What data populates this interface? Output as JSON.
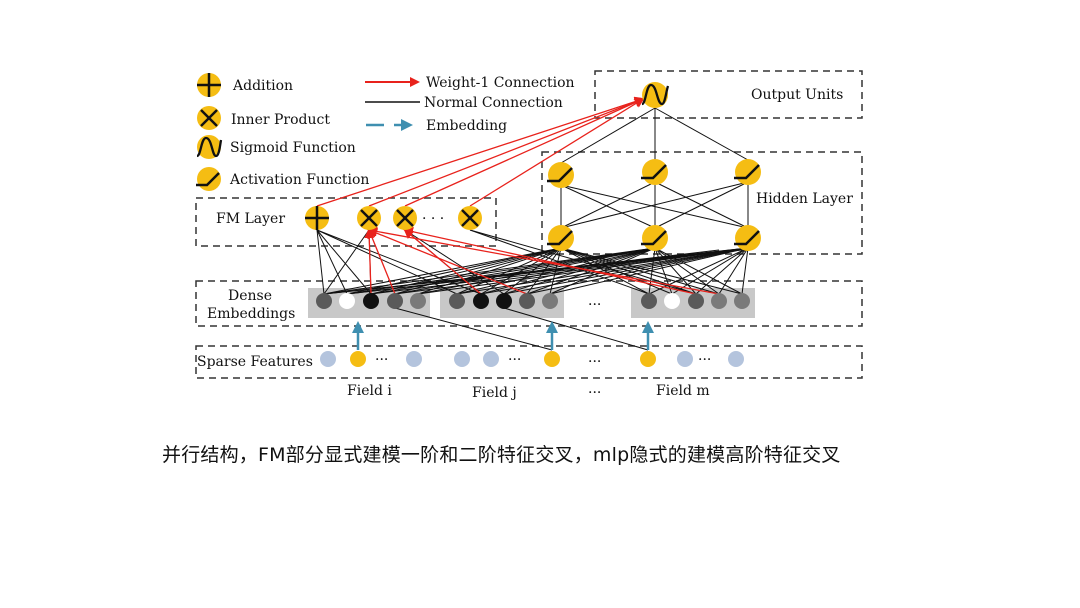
{
  "legend": {
    "addition": "Addition",
    "inner_product": "Inner Product",
    "sigmoid": "Sigmoid Function",
    "activation": "Activation Function",
    "weight1": "Weight-1 Connection",
    "normal": "Normal Connection",
    "embedding": "Embedding"
  },
  "layers": {
    "output": "Output Units",
    "hidden": "Hidden Layer",
    "fm": "FM Layer",
    "dense_line1": "Dense",
    "dense_line2": "Embeddings",
    "sparse": "Sparse Features"
  },
  "fields": {
    "i": "Field i",
    "j": "Field j",
    "m": "Field m",
    "ellipsis": "···"
  },
  "ellipsis": "···",
  "fm_ellipsis": "· · ·",
  "caption": "并行结构，FM部分显式建模一阶和二阶特征交叉，mlp隐式的建模高阶特征交叉",
  "colors": {
    "yellow": "#f5bd13",
    "red": "#e8221c",
    "blue": "#3f8fb0",
    "grey_box": "#c8c8c8",
    "light_blue": "#b4c4dd"
  },
  "icons": [
    "addition-icon",
    "inner-product-icon",
    "sigmoid-icon",
    "activation-icon"
  ]
}
